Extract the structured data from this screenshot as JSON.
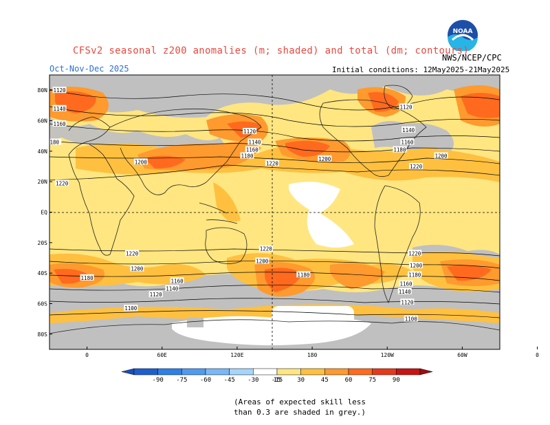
{
  "header": {
    "title": "CFSv2 seasonal z200 anomalies (m; shaded) and total (dm; contours)",
    "season": "Oct-Nov-Dec 2025",
    "initial_conditions": "Initial conditions: 12May2025-21May2025",
    "agency": "NWS/NCEP/CPC",
    "logo_text": "NOAA"
  },
  "map": {
    "projection": "cylindrical-equidistant",
    "lon_range": [
      -30,
      330
    ],
    "lat_range": [
      -90,
      90
    ],
    "lat_ticks": [
      "80N",
      "60N",
      "40N",
      "20N",
      "EQ",
      "20S",
      "40S",
      "60S",
      "80S"
    ],
    "lon_ticks": [
      "0",
      "60E",
      "120E",
      "180",
      "120W",
      "60W",
      "0"
    ],
    "contour_labels": [
      {
        "text": "1120",
        "lon": -22,
        "lat": 80
      },
      {
        "text": "1140",
        "lon": -22,
        "lat": 68
      },
      {
        "text": "1160",
        "lon": -22,
        "lat": 58
      },
      {
        "text": "180",
        "lon": -26,
        "lat": 46
      },
      {
        "text": "1200",
        "lon": 43,
        "lat": 33
      },
      {
        "text": "1220",
        "lon": -20,
        "lat": 19
      },
      {
        "text": "1120",
        "lon": 130,
        "lat": 53
      },
      {
        "text": "1140",
        "lon": 134,
        "lat": 46
      },
      {
        "text": "1160",
        "lon": 132,
        "lat": 41
      },
      {
        "text": "1180",
        "lon": 128,
        "lat": 37
      },
      {
        "text": "1220",
        "lon": 148,
        "lat": 32
      },
      {
        "text": "1200",
        "lon": 190,
        "lat": 35
      },
      {
        "text": "1120",
        "lon": 255,
        "lat": 69
      },
      {
        "text": "1140",
        "lon": 257,
        "lat": 54
      },
      {
        "text": "1160",
        "lon": 256,
        "lat": 46
      },
      {
        "text": "1180",
        "lon": 250,
        "lat": 41
      },
      {
        "text": "1220",
        "lon": 263,
        "lat": 30
      },
      {
        "text": "1200",
        "lon": 283,
        "lat": 37
      },
      {
        "text": "1220",
        "lon": 36,
        "lat": -27
      },
      {
        "text": "1200",
        "lon": 40,
        "lat": -37
      },
      {
        "text": "1180",
        "lon": 0,
        "lat": -43
      },
      {
        "text": "1160",
        "lon": 72,
        "lat": -45
      },
      {
        "text": "1140",
        "lon": 68,
        "lat": -50
      },
      {
        "text": "1120",
        "lon": 55,
        "lat": -54
      },
      {
        "text": "1100",
        "lon": 35,
        "lat": -63
      },
      {
        "text": "1220",
        "lon": 143,
        "lat": -24
      },
      {
        "text": "1200",
        "lon": 140,
        "lat": -32
      },
      {
        "text": "1180",
        "lon": 173,
        "lat": -41
      },
      {
        "text": "1220",
        "lon": 262,
        "lat": -27
      },
      {
        "text": "1200",
        "lon": 263,
        "lat": -35
      },
      {
        "text": "1180",
        "lon": 262,
        "lat": -41
      },
      {
        "text": "1160",
        "lon": 255,
        "lat": -47
      },
      {
        "text": "1140",
        "lon": 254,
        "lat": -52
      },
      {
        "text": "1120",
        "lon": 256,
        "lat": -59
      },
      {
        "text": "1100",
        "lon": 259,
        "lat": -70
      }
    ]
  },
  "colorbar": {
    "labels": [
      "-90",
      "-75",
      "-60",
      "-45",
      "-30",
      "-15",
      "15",
      "30",
      "45",
      "60",
      "75",
      "90"
    ],
    "colors": [
      "#1e5fd0",
      "#2f80e8",
      "#4f9bf0",
      "#79b8f6",
      "#a6d5fb",
      "#ffffff",
      "#ffe680",
      "#ffc040",
      "#ff9a2e",
      "#ff6a1e",
      "#e8381a",
      "#c81414"
    ],
    "end_low": "#1a4fc0",
    "end_high": "#a00d0d",
    "grey": "#c0c0c0"
  },
  "footnote": {
    "line1": "(Areas of expected skill less",
    "line2": "than 0.3 are shaded in grey.)"
  }
}
